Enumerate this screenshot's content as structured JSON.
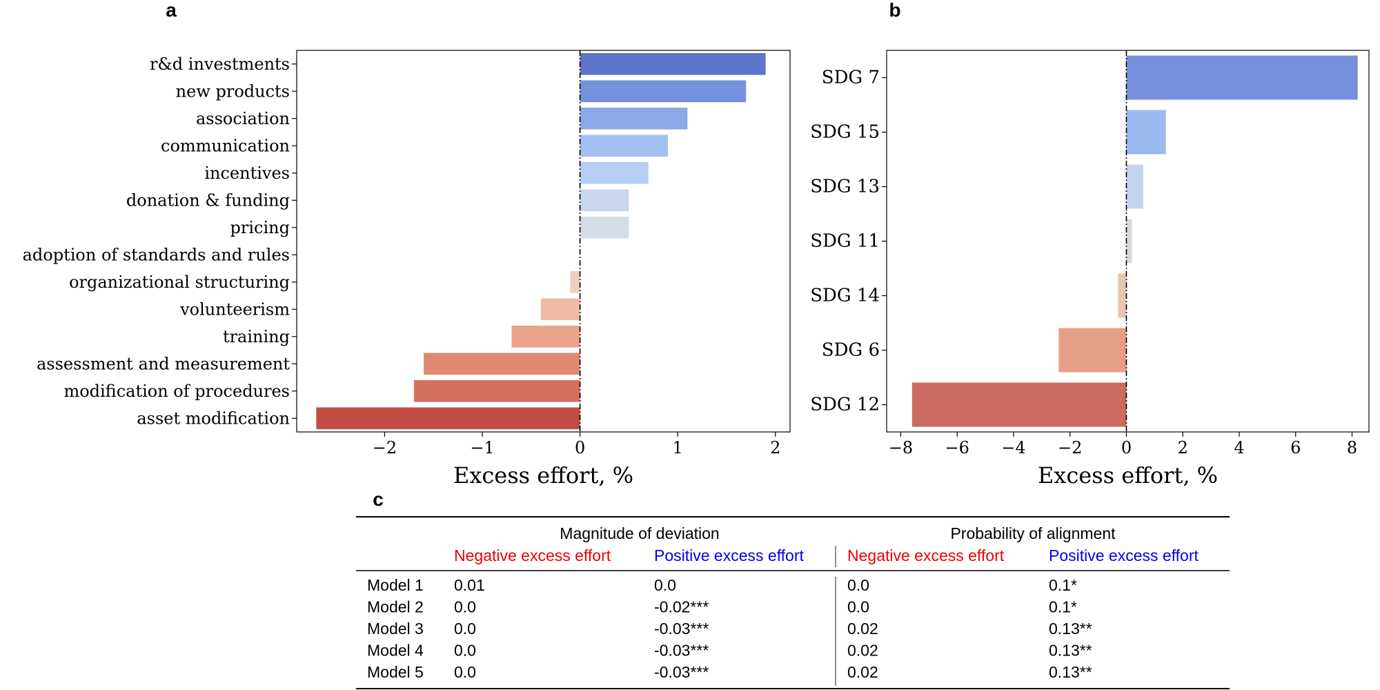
{
  "panel_labels": {
    "a": "a",
    "b": "b",
    "c": "c"
  },
  "chart_data": [
    {
      "id": "panel-a",
      "type": "bar",
      "orientation": "horizontal",
      "title": "",
      "xlabel": "Excess effort, %",
      "ylabel": "",
      "xlim": [
        -2.9,
        2.15
      ],
      "xticks": [
        -2,
        -1,
        0,
        1,
        2
      ],
      "xtick_labels": [
        "−2",
        "−1",
        "0",
        "1",
        "2"
      ],
      "grid": false,
      "categories": [
        "r&d investments",
        "new products",
        "association",
        "communication",
        "incentives",
        "donation & funding",
        "pricing",
        "adoption of standards and rules",
        "organizational structuring",
        "volunteerism",
        "training",
        "assessment and measurement",
        "modification of procedures",
        "asset modification"
      ],
      "values": [
        1.9,
        1.7,
        1.1,
        0.9,
        0.7,
        0.5,
        0.5,
        0.0,
        -0.1,
        -0.4,
        -0.7,
        -1.6,
        -1.7,
        -2.7
      ],
      "colors": [
        "#5f74cb",
        "#7592de",
        "#8ca8e8",
        "#a3bff2",
        "#b6cdf5",
        "#c8d6ef",
        "#d5dce5",
        "#e0d8d2",
        "#eccfbe",
        "#eebca5",
        "#e9a389",
        "#df8a70",
        "#d4705e",
        "#c34c46"
      ]
    },
    {
      "id": "panel-b",
      "type": "bar",
      "orientation": "horizontal",
      "title": "",
      "xlabel": "Excess effort, %",
      "ylabel": "",
      "xlim": [
        -8.5,
        8.6
      ],
      "xticks": [
        -8,
        -6,
        -4,
        -2,
        0,
        2,
        4,
        6,
        8
      ],
      "xtick_labels": [
        "−8",
        "−6",
        "−4",
        "−2",
        "0",
        "2",
        "4",
        "6",
        "8"
      ],
      "grid": false,
      "categories": [
        "SDG 7",
        "SDG 15",
        "SDG 13",
        "SDG 11",
        "SDG 14",
        "SDG 6",
        "SDG 12"
      ],
      "values": [
        8.2,
        1.4,
        0.6,
        0.2,
        -0.3,
        -2.4,
        -7.6
      ],
      "colors": [
        "#7590dc",
        "#9bb8ef",
        "#c5d5f1",
        "#d9d9d9",
        "#ebc4b2",
        "#e6a088",
        "#cb6b5f"
      ]
    },
    {
      "id": "panel-c",
      "type": "table",
      "groups": [
        "Magnitude of deviation",
        "Probability of alignment"
      ],
      "subheaders": [
        {
          "text": "Negative excess effort",
          "color": "#ee0000"
        },
        {
          "text": "Positive excess effort",
          "color": "#0000ee"
        },
        {
          "text": "Negative excess effort",
          "color": "#ee0000"
        },
        {
          "text": "Positive excess effort",
          "color": "#0000ee"
        }
      ],
      "rows": [
        {
          "label": "Model 1",
          "cells": [
            "0.01",
            "0.0",
            "0.0",
            "0.1*"
          ]
        },
        {
          "label": "Model 2",
          "cells": [
            "0.0",
            "-0.02***",
            "0.0",
            "0.1*"
          ]
        },
        {
          "label": "Model 3",
          "cells": [
            "0.0",
            "-0.03***",
            "0.02",
            "0.13**"
          ]
        },
        {
          "label": "Model 4",
          "cells": [
            "0.0",
            "-0.03***",
            "0.02",
            "0.13**"
          ]
        },
        {
          "label": "Model 5",
          "cells": [
            "0.0",
            "-0.03***",
            "0.02",
            "0.13**"
          ]
        }
      ]
    }
  ]
}
